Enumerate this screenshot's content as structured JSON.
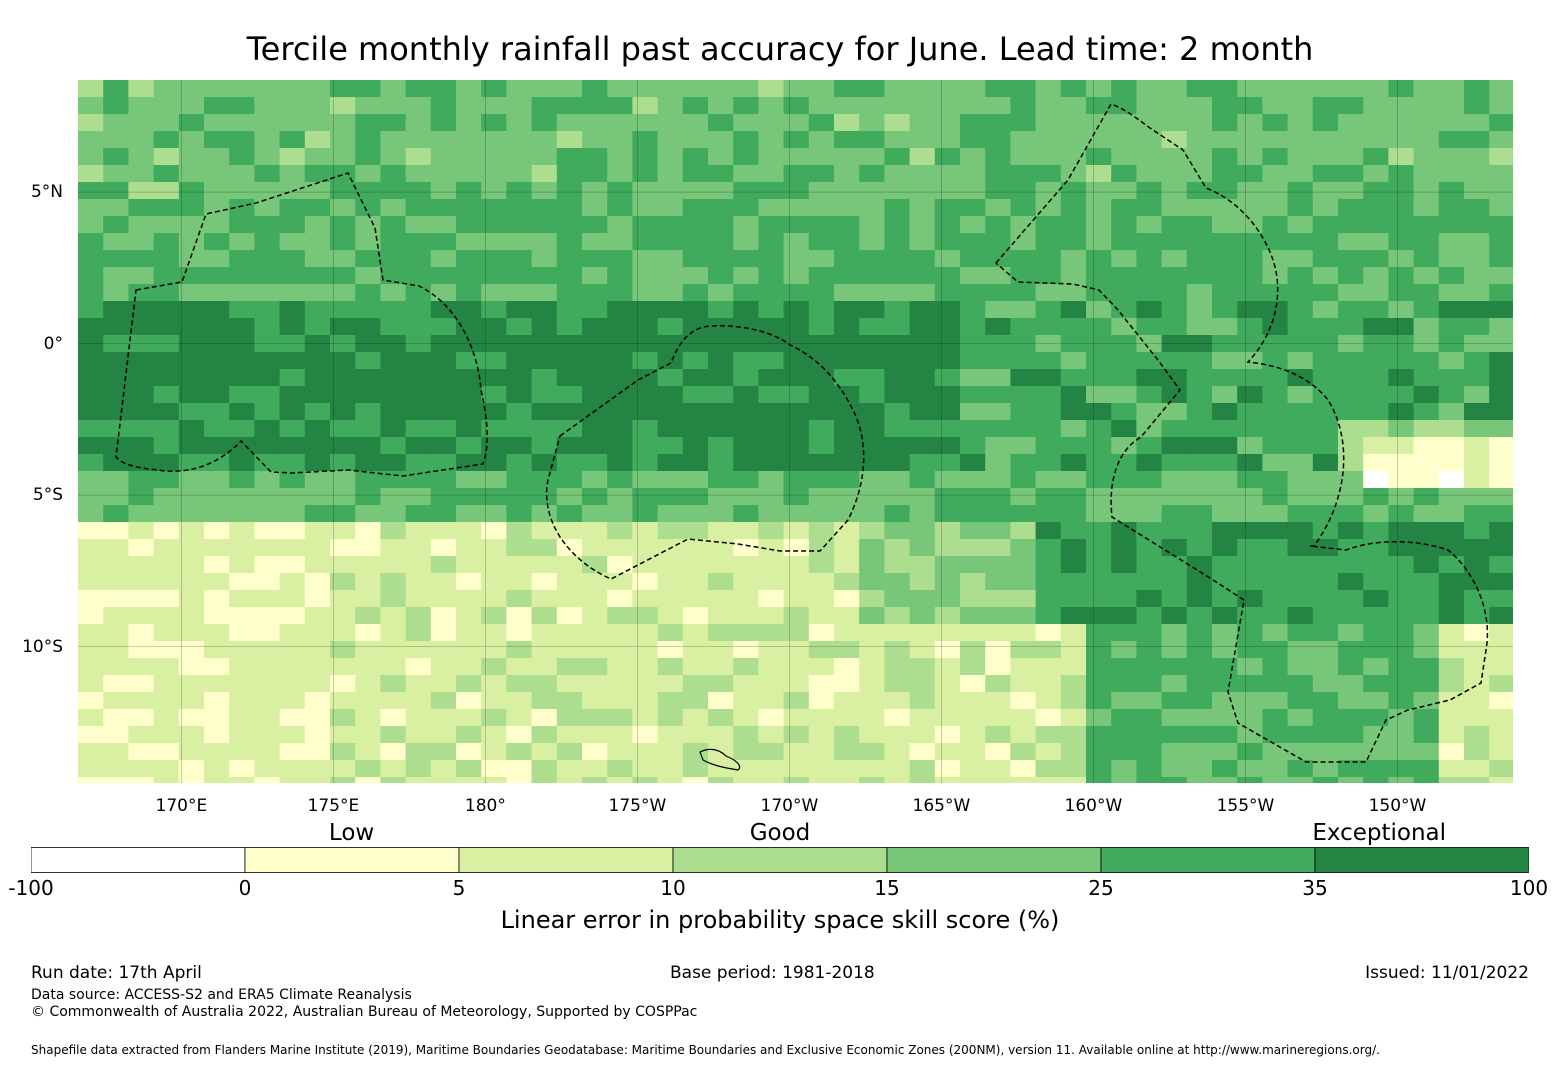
{
  "title": "Tercile monthly rainfall past accuracy for June. Lead time: 2 month",
  "map": {
    "lon_range": [
      166.6,
      213.8
    ],
    "lat_range": [
      -14.5,
      8.7
    ],
    "lon_ticks": [
      {
        "value": 170,
        "label": "170°E"
      },
      {
        "value": 175,
        "label": "175°E"
      },
      {
        "value": 180,
        "label": "180°"
      },
      {
        "value": 185,
        "label": "175°W"
      },
      {
        "value": 190,
        "label": "170°W"
      },
      {
        "value": 195,
        "label": "165°W"
      },
      {
        "value": 200,
        "label": "160°W"
      },
      {
        "value": 205,
        "label": "155°W"
      },
      {
        "value": 210,
        "label": "150°W"
      }
    ],
    "lat_ticks": [
      {
        "value": 5,
        "label": "5°N"
      },
      {
        "value": 0,
        "label": "0°"
      },
      {
        "value": -5,
        "label": "5°S"
      },
      {
        "value": -10,
        "label": "10°S"
      }
    ],
    "gridlines": true,
    "colormap": "green skill-score classes",
    "eez_boundaries": "dashed black outlines"
  },
  "legend": {
    "categories": [
      {
        "label": "Low",
        "position": 0.214
      },
      {
        "label": "Good",
        "position": 0.5
      },
      {
        "label": "Exceptional",
        "position": 0.9
      }
    ],
    "bins": [
      {
        "from": "-100",
        "to": "0",
        "color": "#ffffff"
      },
      {
        "from": "0",
        "to": "5",
        "color": "#ffffcc"
      },
      {
        "from": "5",
        "to": "10",
        "color": "#d9f0a3"
      },
      {
        "from": "10",
        "to": "15",
        "color": "#addd8e"
      },
      {
        "from": "15",
        "to": "25",
        "color": "#78c679"
      },
      {
        "from": "25",
        "to": "35",
        "color": "#41ab5d"
      },
      {
        "from": "35",
        "to": "100",
        "color": "#238443"
      }
    ],
    "ticks": [
      "-100",
      "0",
      "5",
      "10",
      "15",
      "25",
      "35",
      "100"
    ],
    "label": "Linear error in probability space skill score (%)"
  },
  "footer": {
    "run_date": "Run date: 17th April",
    "base_period": "Base period: 1981-2018",
    "issued": "Issued: 11/01/2022",
    "data_source": "Data source: ACCESS-S2 and ERA5 Climate Reanalysis",
    "copyright": "© Commonwealth of Australia 2022, Australian Bureau of Meteorology, Supported by COSPPac",
    "shapefile": "Shapefile data extracted from Flanders Marine Institute (2019), Maritime Boundaries Geodatabase: Maritime Boundaries and Exclusive Economic Zones (200NM), version 11. Available online at http://www.marineregions.org/."
  }
}
